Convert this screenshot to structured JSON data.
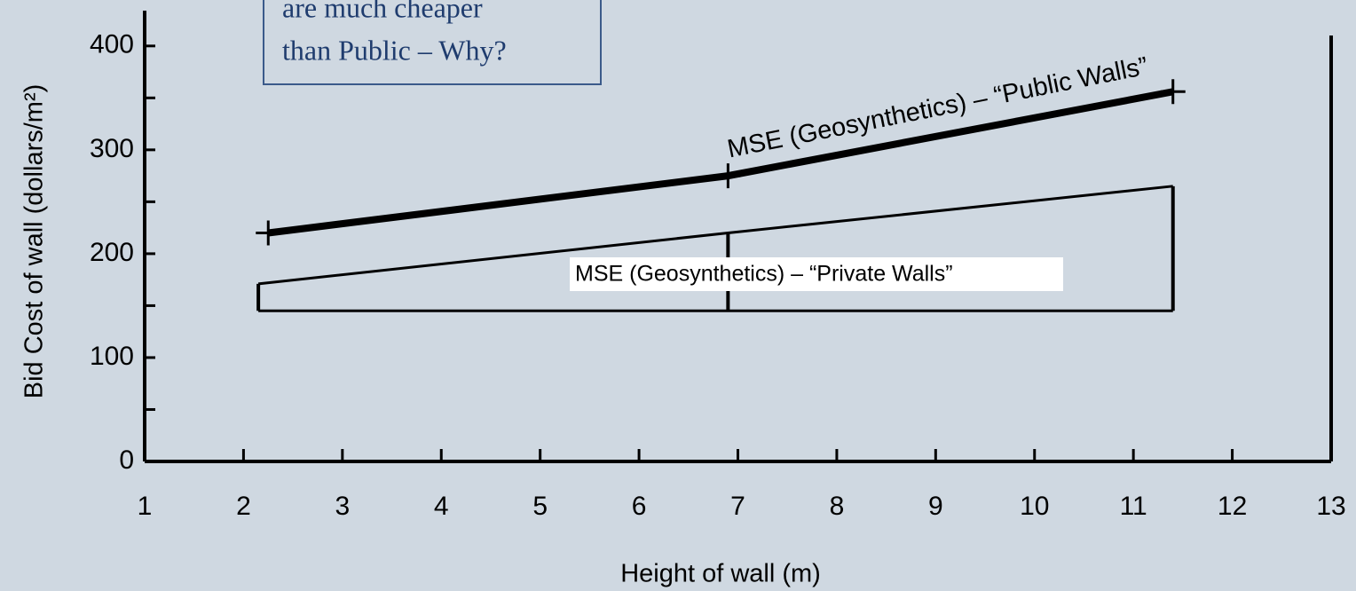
{
  "chart_data": {
    "type": "line",
    "xlabel": "Height of wall (m)",
    "ylabel": "Bid Cost of wall (dollars/m²)",
    "annotation": [
      "are much cheaper",
      "than Public – Why?"
    ],
    "xlim": [
      1,
      13
    ],
    "xticks": [
      1,
      2,
      3,
      4,
      5,
      6,
      7,
      8,
      9,
      10,
      11,
      12,
      13
    ],
    "ylim": [
      0,
      434
    ],
    "yticks": [
      0,
      100,
      200,
      300,
      400
    ],
    "yminorticks": [
      50,
      150,
      250,
      350
    ],
    "series": [
      {
        "name": "MSE (Geosynthetics) – “Public Walls”",
        "color": "#000000",
        "x": [
          2.25,
          6.9,
          11.4
        ],
        "values": [
          220,
          275,
          356
        ]
      },
      {
        "name": "MSE (Geosynthetics) – “Private Walls”",
        "color": "#000000",
        "x": [
          2.15,
          6.9,
          11.4
        ],
        "high": [
          171,
          220,
          265
        ],
        "low": [
          145,
          145,
          145
        ]
      }
    ]
  }
}
